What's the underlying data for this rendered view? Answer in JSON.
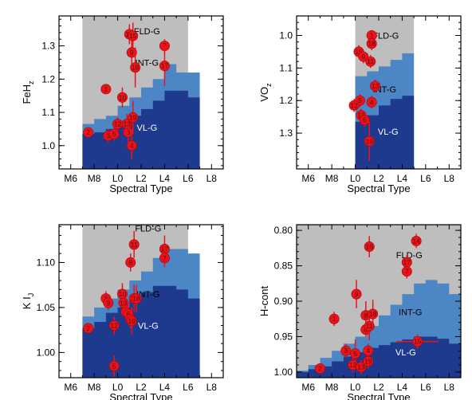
{
  "colors": {
    "fld": "#bebebe",
    "int": "#4d86c4",
    "vl": "#1e3a8f",
    "point": "#e8141c",
    "errorbar": "#e8141c",
    "point_label": "#5a0a0a",
    "axis": "#000000"
  },
  "spectral_types": [
    "M6",
    "M8",
    "L0",
    "L2",
    "L4",
    "L6",
    "L8"
  ],
  "chart_data": [
    {
      "type": "scatter",
      "xlabel": "Spectral Type",
      "ylabel": "FeH",
      "ylabel_sub": "z",
      "y_inverted": false,
      "xlim": [
        5,
        19
      ],
      "ylim": [
        0.93,
        1.39
      ],
      "yticks": [
        1.0,
        1.1,
        1.2,
        1.3
      ],
      "ytick_labels": [
        "1.0",
        "1.1",
        "1.2",
        "1.3"
      ],
      "region_labels": {
        "fld": "FLD-G",
        "int": "INT-G",
        "vl": "VL-G"
      },
      "region_label_pos": {
        "fld": [
          12.5,
          1.345
        ],
        "int": [
          12.5,
          1.25
        ],
        "vl": [
          12.5,
          1.055
        ]
      },
      "bins_x": [
        5,
        6,
        7,
        8,
        9,
        10,
        11,
        12,
        13,
        14,
        15,
        16,
        17,
        18,
        19
      ],
      "bins_span": [
        7,
        16
      ],
      "int_upper": [
        null,
        null,
        1.065,
        1.08,
        1.09,
        1.12,
        1.145,
        1.175,
        1.2,
        1.245,
        1.22,
        1.22
      ],
      "vl_upper": [
        null,
        null,
        1.035,
        1.04,
        1.05,
        1.065,
        1.09,
        1.11,
        1.135,
        1.165,
        1.165,
        1.145
      ],
      "points": [
        {
          "id": "1",
          "x": 9.0,
          "y": 1.17,
          "yerr": 0.01
        },
        {
          "id": "2",
          "x": 7.5,
          "y": 1.04,
          "yerr": 0.01
        },
        {
          "id": "3",
          "x": 9.2,
          "y": 1.03,
          "yerr": 0.02
        },
        {
          "id": "4",
          "x": 11.2,
          "y": 1.0,
          "yerr": 0.04
        },
        {
          "id": "5",
          "x": 9.7,
          "y": 1.035,
          "yerr": 0.02
        },
        {
          "id": "6",
          "x": 10.9,
          "y": 1.04,
          "yerr": 0.03
        },
        {
          "id": "7",
          "x": 14.0,
          "y": 1.3,
          "yerr": 0.02
        },
        {
          "id": "9",
          "x": 11.2,
          "y": 1.28,
          "yerr": 0.04
        },
        {
          "id": "10",
          "x": 10.4,
          "y": 1.145,
          "yerr": 0.03
        },
        {
          "id": "12",
          "x": 10.0,
          "y": 1.065,
          "yerr": 0.02
        },
        {
          "id": "13",
          "x": 10.8,
          "y": 1.065,
          "yerr": 0.03
        },
        {
          "id": "16",
          "x": 11.0,
          "y": 1.335,
          "yerr": 0.03
        },
        {
          "id": "15",
          "x": 11.3,
          "y": 1.33,
          "yerr": 0.04
        },
        {
          "id": "17",
          "x": 14.0,
          "y": 1.24,
          "yerr": 0.06
        },
        {
          "id": "18",
          "x": 11.5,
          "y": 1.235,
          "yerr": 0.06
        },
        {
          "id": "19",
          "x": 11.3,
          "y": 1.085,
          "yerr": 0.05
        }
      ]
    },
    {
      "type": "scatter",
      "xlabel": "Spectral Type",
      "ylabel": "VO",
      "ylabel_sub": "z",
      "y_inverted": true,
      "xlim": [
        5,
        19
      ],
      "ylim": [
        0.94,
        1.41
      ],
      "yticks": [
        1.0,
        1.1,
        1.2,
        1.3
      ],
      "ytick_labels": [
        "1.0",
        "1.1",
        "1.2",
        "1.3"
      ],
      "region_labels": {
        "fld": "FLD-G",
        "int": "INT-G",
        "vl": "VL-G"
      },
      "region_label_pos": {
        "fld": [
          12.6,
          1.0
        ],
        "int": [
          12.5,
          1.165
        ],
        "vl": [
          12.8,
          1.295
        ]
      },
      "bins_x": [
        5,
        6,
        7,
        8,
        9,
        10,
        11,
        12,
        13,
        14,
        15,
        16,
        17,
        18,
        19
      ],
      "bins_span": [
        10,
        15
      ],
      "int_upper": [
        null,
        null,
        null,
        null,
        null,
        1.125,
        1.11,
        1.095,
        1.075,
        1.055
      ],
      "vl_upper": [
        null,
        null,
        null,
        null,
        null,
        1.265,
        1.245,
        1.215,
        1.195,
        1.185
      ],
      "points": [
        {
          "id": "1",
          "x": 11.4,
          "y": 1.0,
          "yerr": 0.01
        },
        {
          "id": "18",
          "x": 11.4,
          "y": 1.025,
          "yerr": 0.02
        },
        {
          "id": "15",
          "x": 10.3,
          "y": 1.05,
          "yerr": 0.02
        },
        {
          "id": "9",
          "x": 10.7,
          "y": 1.065,
          "yerr": 0.02
        },
        {
          "id": "11",
          "x": 11.3,
          "y": 1.08,
          "yerr": 0.02
        },
        {
          "id": "13",
          "x": 11.7,
          "y": 1.155,
          "yerr": 0.02
        },
        {
          "id": "5",
          "x": 10.4,
          "y": 1.2,
          "yerr": 0.02
        },
        {
          "id": "12",
          "x": 9.9,
          "y": 1.215,
          "yerr": 0.02
        },
        {
          "id": "4",
          "x": 11.4,
          "y": 1.205,
          "yerr": 0.02
        },
        {
          "id": "13",
          "x": 10.5,
          "y": 1.245,
          "yerr": 0.02
        },
        {
          "id": "5",
          "x": 10.8,
          "y": 1.26,
          "yerr": 0.02
        },
        {
          "id": "19",
          "x": 11.2,
          "y": 1.325,
          "yerr": 0.06
        }
      ]
    },
    {
      "type": "scatter",
      "xlabel": "Spectral Type",
      "ylabel": "K I",
      "ylabel_sub": "J",
      "y_inverted": false,
      "xlim": [
        5,
        19
      ],
      "ylim": [
        0.972,
        1.142
      ],
      "yticks": [
        1.0,
        1.05,
        1.1
      ],
      "ytick_labels": [
        "1.00",
        "1.05",
        "1.10"
      ],
      "region_labels": {
        "fld": "FLD-G",
        "int": "INT-G",
        "vl": "VL-G"
      },
      "region_label_pos": {
        "fld": [
          12.6,
          1.138
        ],
        "int": [
          12.6,
          1.065
        ],
        "vl": [
          12.6,
          1.03
        ]
      },
      "bins_x": [
        5,
        6,
        7,
        8,
        9,
        10,
        11,
        12,
        13,
        14,
        15,
        16,
        17,
        18,
        19
      ],
      "bins_span": [
        7,
        16
      ],
      "int_upper": [
        null,
        null,
        1.04,
        1.05,
        1.06,
        1.07,
        1.08,
        1.09,
        1.105,
        1.115,
        1.115,
        1.11
      ],
      "vl_upper": [
        null,
        null,
        1.027,
        1.034,
        1.044,
        1.05,
        1.06,
        1.067,
        1.074,
        1.074,
        1.07,
        1.06
      ],
      "points": [
        {
          "id": "1",
          "x": 9.0,
          "y": 1.06,
          "yerr": 0.008
        },
        {
          "id": "2",
          "x": 7.5,
          "y": 1.027,
          "yerr": 0.005
        },
        {
          "id": "3",
          "x": 9.2,
          "y": 1.055,
          "yerr": 0.008
        },
        {
          "id": "5",
          "x": 9.7,
          "y": 0.985,
          "yerr": 0.012
        },
        {
          "id": "12",
          "x": 9.7,
          "y": 1.03,
          "yerr": 0.01
        },
        {
          "id": "9",
          "x": 10.7,
          "y": 1.045,
          "yerr": 0.01
        },
        {
          "id": "10",
          "x": 10.4,
          "y": 1.065,
          "yerr": 0.012
        },
        {
          "id": "13",
          "x": 10.5,
          "y": 1.055,
          "yerr": 0.008
        },
        {
          "id": "16",
          "x": 11.4,
          "y": 1.06,
          "yerr": 0.015
        },
        {
          "id": "18",
          "x": 11.6,
          "y": 1.06,
          "yerr": 0.015
        },
        {
          "id": "6",
          "x": 10.9,
          "y": 1.043,
          "yerr": 0.01
        },
        {
          "id": "4",
          "x": 11.1,
          "y": 1.037,
          "yerr": 0.01
        },
        {
          "id": "19",
          "x": 11.2,
          "y": 1.035,
          "yerr": 0.015
        },
        {
          "id": "8",
          "x": 11.1,
          "y": 1.1,
          "yerr": 0.01
        },
        {
          "id": "11",
          "x": 11.4,
          "y": 1.12,
          "yerr": 0.015
        },
        {
          "id": "17",
          "x": 14.0,
          "y": 1.115,
          "yerr": 0.015
        },
        {
          "id": "7",
          "x": 14.0,
          "y": 1.105,
          "yerr": 0.01
        }
      ]
    },
    {
      "type": "scatter",
      "xlabel": "Spectral Type",
      "ylabel": "H-cont",
      "ylabel_sub": "",
      "y_inverted": true,
      "xlim": [
        5,
        19
      ],
      "ylim": [
        0.792,
        1.008
      ],
      "yticks": [
        0.8,
        0.85,
        0.9,
        0.95,
        1.0
      ],
      "ytick_labels": [
        "0.80",
        "0.85",
        "0.90",
        "0.95",
        "1.00"
      ],
      "region_labels": {
        "fld": "FLD-G",
        "int": "INT-G",
        "vl": "VL-G"
      },
      "region_label_pos": {
        "fld": [
          14.6,
          0.835
        ],
        "int": [
          14.7,
          0.915
        ],
        "vl": [
          14.3,
          0.972
        ]
      },
      "bins_x": [
        5,
        6,
        7,
        8,
        9,
        10,
        11,
        12,
        13,
        14,
        15,
        16,
        17,
        18,
        19
      ],
      "bins_span": [
        5,
        19
      ],
      "int_upper": [
        0.998,
        0.99,
        0.98,
        0.97,
        0.96,
        0.95,
        0.935,
        0.92,
        0.905,
        0.89,
        0.875,
        0.87,
        0.875,
        0.89
      ],
      "vl_upper": [
        1.0,
        0.996,
        0.992,
        0.985,
        0.978,
        0.972,
        0.966,
        0.962,
        0.958,
        0.954,
        0.95,
        0.95,
        0.953,
        0.96
      ],
      "points": [
        {
          "id": "1",
          "x": 8.2,
          "y": 0.925,
          "yerr": 0.01
        },
        {
          "id": "2",
          "x": 7.0,
          "y": 0.995,
          "yerr": 0.005
        },
        {
          "id": "3",
          "x": 9.2,
          "y": 0.97,
          "yerr": 0.01
        },
        {
          "id": "5",
          "x": 10.0,
          "y": 0.974,
          "yerr": 0.02
        },
        {
          "id": "12",
          "x": 9.8,
          "y": 0.99,
          "yerr": 0.01
        },
        {
          "id": "13",
          "x": 10.5,
          "y": 0.993,
          "yerr": 0.01
        },
        {
          "id": "9",
          "x": 10.1,
          "y": 0.89,
          "yerr": 0.02
        },
        {
          "id": "8",
          "x": 10.9,
          "y": 0.92,
          "yerr": 0.02
        },
        {
          "id": "6",
          "x": 10.9,
          "y": 0.94,
          "yerr": 0.01
        },
        {
          "id": "11",
          "x": 11.2,
          "y": 0.935,
          "yerr": 0.02
        },
        {
          "id": "18",
          "x": 11.5,
          "y": 0.918,
          "yerr": 0.02
        },
        {
          "id": "4",
          "x": 11.1,
          "y": 0.97,
          "yerr": 0.01
        },
        {
          "id": "19",
          "x": 11.1,
          "y": 0.985,
          "yerr": 0.01
        },
        {
          "id": "16",
          "x": 11.2,
          "y": 0.823,
          "yerr": 0.015
        },
        {
          "id": "14",
          "x": 15.2,
          "y": 0.815,
          "yerr": 0.01
        },
        {
          "id": "17",
          "x": 14.4,
          "y": 0.845,
          "yerr": 0.01
        },
        {
          "id": "7",
          "x": 14.4,
          "y": 0.858,
          "yerr": 0.01
        },
        {
          "id": "15",
          "x": 15.3,
          "y": 0.957,
          "yerr": 0.01,
          "xerr": 1.8
        }
      ]
    }
  ]
}
